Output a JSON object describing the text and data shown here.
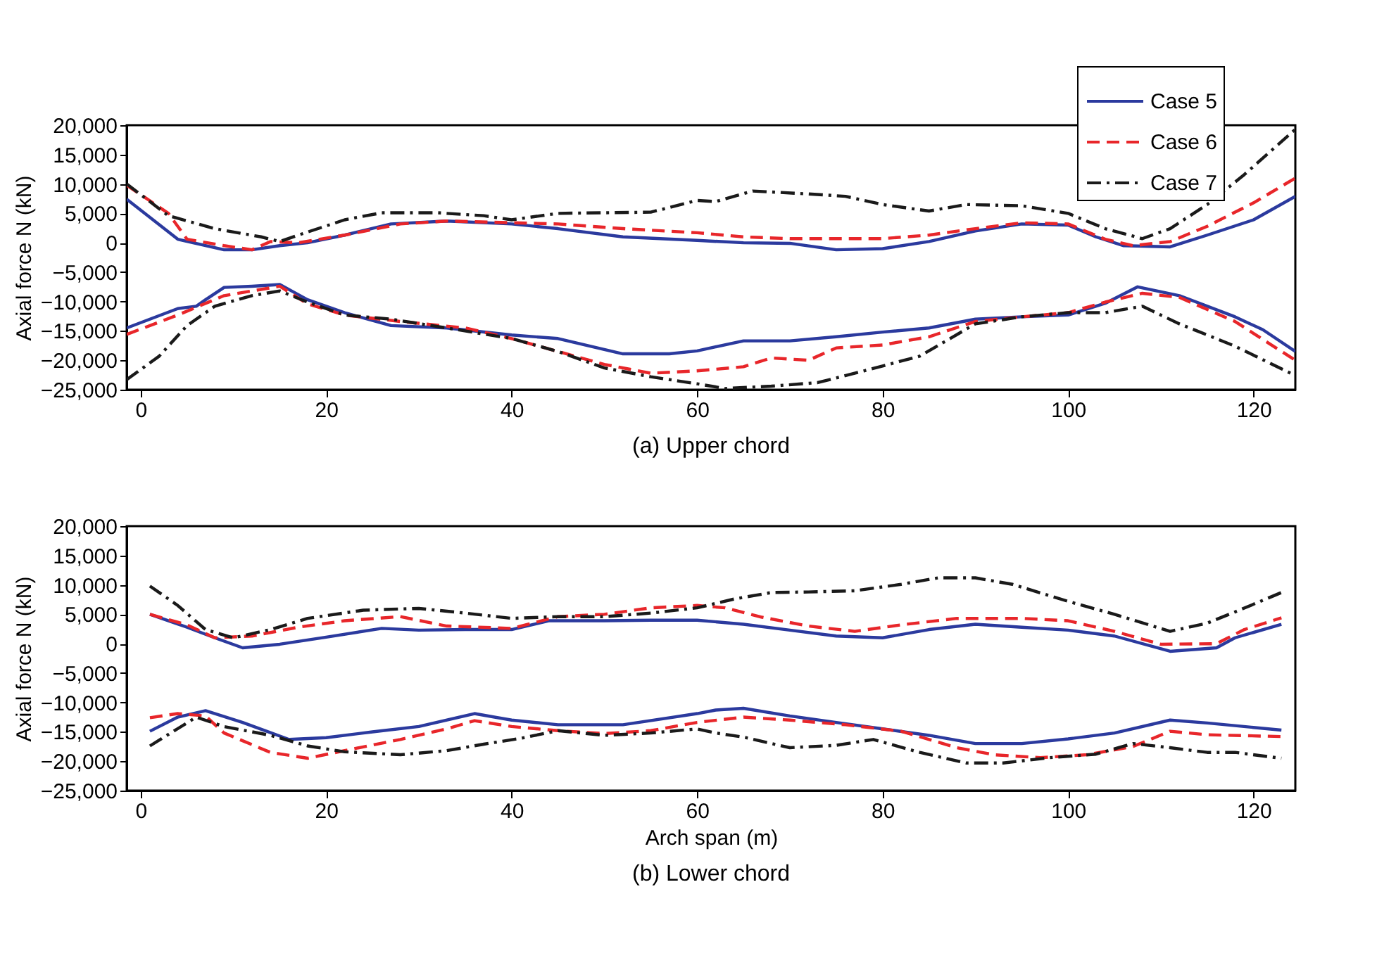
{
  "chart_data": [
    {
      "type": "line",
      "title": "(a) Upper chord",
      "ylabel": "Axial force N (kN)",
      "xlim": [
        -1.5,
        124.5
      ],
      "ylim": [
        -25000,
        20000
      ],
      "xticks": [
        0,
        20,
        40,
        60,
        80,
        100,
        120
      ],
      "yticks": [
        {
          "value": -25000,
          "label": "−25,000"
        },
        {
          "value": -20000,
          "label": "−20,000"
        },
        {
          "value": -15000,
          "label": "−15,000"
        },
        {
          "value": -10000,
          "label": "−10,000"
        },
        {
          "value": -5000,
          "label": "−5,000"
        },
        {
          "value": 0,
          "label": "0"
        },
        {
          "value": 5000,
          "label": "5,000"
        },
        {
          "value": 10000,
          "label": "10,000"
        },
        {
          "value": 15000,
          "label": "15,000"
        },
        {
          "value": 20000,
          "label": "20,000"
        }
      ],
      "grid": false,
      "legend": "top right",
      "series": [
        {
          "name": "Case 5",
          "color": "#2b3a9e",
          "line_style": "solid",
          "x": [
            -1.5,
            4,
            9,
            12,
            15,
            18,
            22,
            27,
            33,
            40,
            45,
            52,
            60,
            65,
            70,
            75,
            80,
            85,
            90,
            95,
            100,
            103,
            106,
            111,
            115,
            120,
            124.5
          ],
          "values": [
            7400,
            600,
            -1200,
            -1200,
            -500,
            0,
            1300,
            3200,
            3700,
            3200,
            2400,
            1000,
            400,
            0,
            -100,
            -1200,
            -1000,
            200,
            2000,
            3200,
            3000,
            1000,
            -500,
            -700,
            1300,
            3900,
            7900
          ]
        },
        {
          "name": "Case 6",
          "color": "#e8262a",
          "line_style": "dashed",
          "x": [
            -1.5,
            3,
            5,
            9,
            12,
            14,
            17,
            22,
            28,
            33,
            40,
            45,
            52,
            60,
            65,
            70,
            75,
            80,
            85,
            90,
            95,
            100,
            104,
            107,
            111,
            115,
            120,
            124.5
          ],
          "values": [
            9800,
            5000,
            600,
            -500,
            -1200,
            200,
            0,
            1300,
            3200,
            3700,
            3400,
            3200,
            2400,
            1700,
            1000,
            700,
            700,
            700,
            1300,
            2400,
            3400,
            3200,
            600,
            -500,
            200,
            2800,
            6800,
            11000
          ]
        },
        {
          "name": "Case 7",
          "color": "#1a1a1a",
          "line_style": "dashdot",
          "x": [
            -1.5,
            3,
            8,
            13,
            15,
            17,
            22,
            26,
            32,
            37,
            40,
            45,
            50,
            55,
            60,
            62,
            66,
            72,
            76,
            80,
            85,
            89,
            95,
            100,
            104,
            108,
            111,
            115,
            119,
            124.5
          ],
          "values": [
            10000,
            4600,
            2400,
            1000,
            200,
            1300,
            3900,
            5100,
            5100,
            4600,
            3900,
            5000,
            5100,
            5200,
            7200,
            7000,
            8800,
            8300,
            7900,
            6500,
            5400,
            6500,
            6300,
            5000,
            2400,
            700,
            2400,
            6500,
            11600,
            19300
          ]
        },
        {
          "color": "#2b3a9e",
          "line_style": "solid",
          "x": [
            -1.5,
            4,
            6,
            7,
            9,
            12,
            15,
            18,
            22,
            27,
            33,
            40,
            45,
            52,
            57,
            60,
            65,
            70,
            75,
            80,
            85,
            90,
            95,
            100,
            104,
            107.5,
            112,
            118,
            121,
            124.5
          ],
          "values": [
            -14500,
            -11200,
            -10800,
            -9700,
            -7600,
            -7400,
            -7100,
            -9700,
            -11900,
            -14100,
            -14500,
            -15700,
            -16300,
            -18900,
            -18900,
            -18400,
            -16700,
            -16700,
            -16000,
            -15200,
            -14500,
            -13000,
            -12600,
            -12300,
            -10300,
            -7500,
            -9000,
            -12600,
            -14800,
            -18500
          ]
        },
        {
          "color": "#e8262a",
          "line_style": "dashed",
          "x": [
            -1.5,
            4,
            9,
            12,
            15,
            18,
            22,
            28,
            35,
            40,
            45,
            50,
            55,
            60,
            65,
            68,
            72,
            75,
            80,
            85,
            90,
            95,
            100,
            104,
            108,
            112,
            118,
            124.5
          ],
          "values": [
            -15600,
            -12300,
            -9000,
            -8200,
            -7400,
            -10400,
            -12300,
            -13400,
            -14500,
            -16300,
            -18500,
            -20700,
            -22200,
            -21800,
            -21100,
            -19600,
            -20000,
            -17900,
            -17400,
            -16000,
            -13400,
            -12600,
            -11900,
            -10100,
            -8600,
            -9300,
            -13400,
            -20000
          ]
        },
        {
          "color": "#1a1a1a",
          "line_style": "dashdot",
          "x": [
            -1.5,
            2,
            5,
            8,
            12,
            15,
            18,
            22,
            27,
            33,
            40,
            45,
            50,
            55,
            60,
            63,
            68,
            73,
            78,
            84,
            90,
            95,
            100,
            104,
            108,
            112,
            118,
            124.5
          ],
          "values": [
            -23300,
            -19300,
            -14100,
            -10800,
            -9000,
            -8200,
            -10100,
            -12300,
            -13000,
            -14500,
            -16300,
            -18500,
            -21300,
            -22800,
            -24000,
            -24800,
            -24400,
            -23800,
            -21800,
            -19300,
            -13800,
            -12600,
            -11900,
            -11900,
            -10800,
            -13800,
            -17600,
            -22600
          ]
        }
      ]
    },
    {
      "type": "line",
      "title": "(b) Lower chord",
      "xlabel": "Arch span (m)",
      "ylabel": "Axial force N (kN)",
      "xlim": [
        -1.5,
        124.5
      ],
      "ylim": [
        -25000,
        20000
      ],
      "xticks": [
        0,
        20,
        40,
        60,
        80,
        100,
        120
      ],
      "yticks": [
        {
          "value": -25000,
          "label": "−25,000"
        },
        {
          "value": -20000,
          "label": "−20,000"
        },
        {
          "value": -15000,
          "label": "−15,000"
        },
        {
          "value": -10000,
          "label": "−10,000"
        },
        {
          "value": -5000,
          "label": "−5,000"
        },
        {
          "value": 0,
          "label": "0"
        },
        {
          "value": 5000,
          "label": "5,000"
        },
        {
          "value": 10000,
          "label": "10,000"
        },
        {
          "value": 15000,
          "label": "15,000"
        },
        {
          "value": 20000,
          "label": "20,000"
        }
      ],
      "grid": false,
      "series": [
        {
          "color": "#2b3a9e",
          "line_style": "solid",
          "x": [
            1,
            5,
            8,
            11,
            15,
            20,
            26,
            30,
            35,
            40,
            44,
            50,
            55,
            60,
            65,
            70,
            75,
            80,
            85,
            90,
            95,
            100,
            105,
            111,
            116,
            118,
            123
          ],
          "values": [
            5000,
            2800,
            1000,
            -700,
            -100,
            1100,
            2600,
            2300,
            2400,
            2400,
            3900,
            3900,
            4000,
            4000,
            3300,
            2300,
            1300,
            1000,
            2400,
            3300,
            2800,
            2300,
            1300,
            -1300,
            -700,
            1000,
            3300
          ]
        },
        {
          "color": "#e8262a",
          "line_style": "dashed",
          "x": [
            1,
            5,
            8,
            12,
            17,
            22,
            28,
            33,
            40,
            45,
            50,
            55,
            60,
            63,
            67,
            72,
            77,
            82,
            88,
            95,
            100,
            105,
            110,
            116,
            119,
            123
          ],
          "values": [
            5000,
            3200,
            1000,
            1300,
            2800,
            3900,
            4600,
            3000,
            2600,
            4600,
            5000,
            6100,
            6500,
            6100,
            4500,
            3000,
            2100,
            3200,
            4300,
            4300,
            3900,
            2100,
            -100,
            0,
            2400,
            4400
          ]
        },
        {
          "color": "#1a1a1a",
          "line_style": "dashdot",
          "x": [
            1,
            4,
            7,
            10,
            14,
            18,
            24,
            30,
            35,
            40,
            45,
            50,
            55,
            60,
            64,
            68,
            72,
            77,
            82,
            86,
            90,
            94,
            100,
            105,
            111,
            115,
            118,
            123
          ],
          "values": [
            9800,
            6500,
            2400,
            1000,
            2400,
            4300,
            5700,
            6000,
            5200,
            4300,
            4600,
            4600,
            5200,
            6100,
            7600,
            8700,
            8800,
            9000,
            10100,
            11200,
            11200,
            10100,
            7200,
            5000,
            2100,
            3500,
            5400,
            8700
          ]
        },
        {
          "color": "#2b3a9e",
          "line_style": "solid",
          "x": [
            1,
            4,
            7,
            11,
            16,
            20,
            25,
            30,
            36,
            40,
            45,
            52,
            60,
            62,
            65,
            70,
            75,
            80,
            85,
            90,
            95,
            100,
            105,
            111,
            115,
            123
          ],
          "values": [
            -14900,
            -12500,
            -11400,
            -13400,
            -16300,
            -16000,
            -15000,
            -14100,
            -11900,
            -13000,
            -13800,
            -13800,
            -11900,
            -11300,
            -11000,
            -12300,
            -13400,
            -14500,
            -15600,
            -17000,
            -17000,
            -16200,
            -15200,
            -13000,
            -13500,
            -14700
          ]
        },
        {
          "color": "#e8262a",
          "line_style": "dashed",
          "x": [
            1,
            4,
            7,
            9,
            14,
            18,
            22,
            28,
            33,
            36,
            40,
            45,
            50,
            55,
            60,
            65,
            70,
            76,
            82,
            88,
            92,
            97,
            102,
            107,
            111,
            115,
            123
          ],
          "values": [
            -12600,
            -11900,
            -12300,
            -15200,
            -18500,
            -19500,
            -18200,
            -16300,
            -14500,
            -13100,
            -14100,
            -14800,
            -15300,
            -14800,
            -13400,
            -12500,
            -13000,
            -13800,
            -14900,
            -17700,
            -18900,
            -19400,
            -18900,
            -17500,
            -14900,
            -15500,
            -15800
          ]
        },
        {
          "color": "#1a1a1a",
          "line_style": "dashdot",
          "x": [
            1,
            6,
            9,
            14,
            18,
            22,
            28,
            33,
            37,
            41,
            45,
            50,
            55,
            60,
            62,
            65,
            70,
            75,
            79,
            84,
            89,
            93,
            98,
            103,
            107,
            111,
            115,
            118,
            123
          ],
          "values": [
            -17400,
            -12500,
            -14100,
            -15600,
            -17400,
            -18400,
            -18900,
            -18200,
            -17100,
            -16100,
            -14800,
            -15600,
            -15200,
            -14500,
            -15200,
            -15900,
            -17700,
            -17300,
            -16300,
            -18500,
            -20300,
            -20300,
            -19400,
            -18800,
            -17000,
            -17700,
            -18500,
            -18500,
            -19500
          ]
        }
      ]
    }
  ]
}
